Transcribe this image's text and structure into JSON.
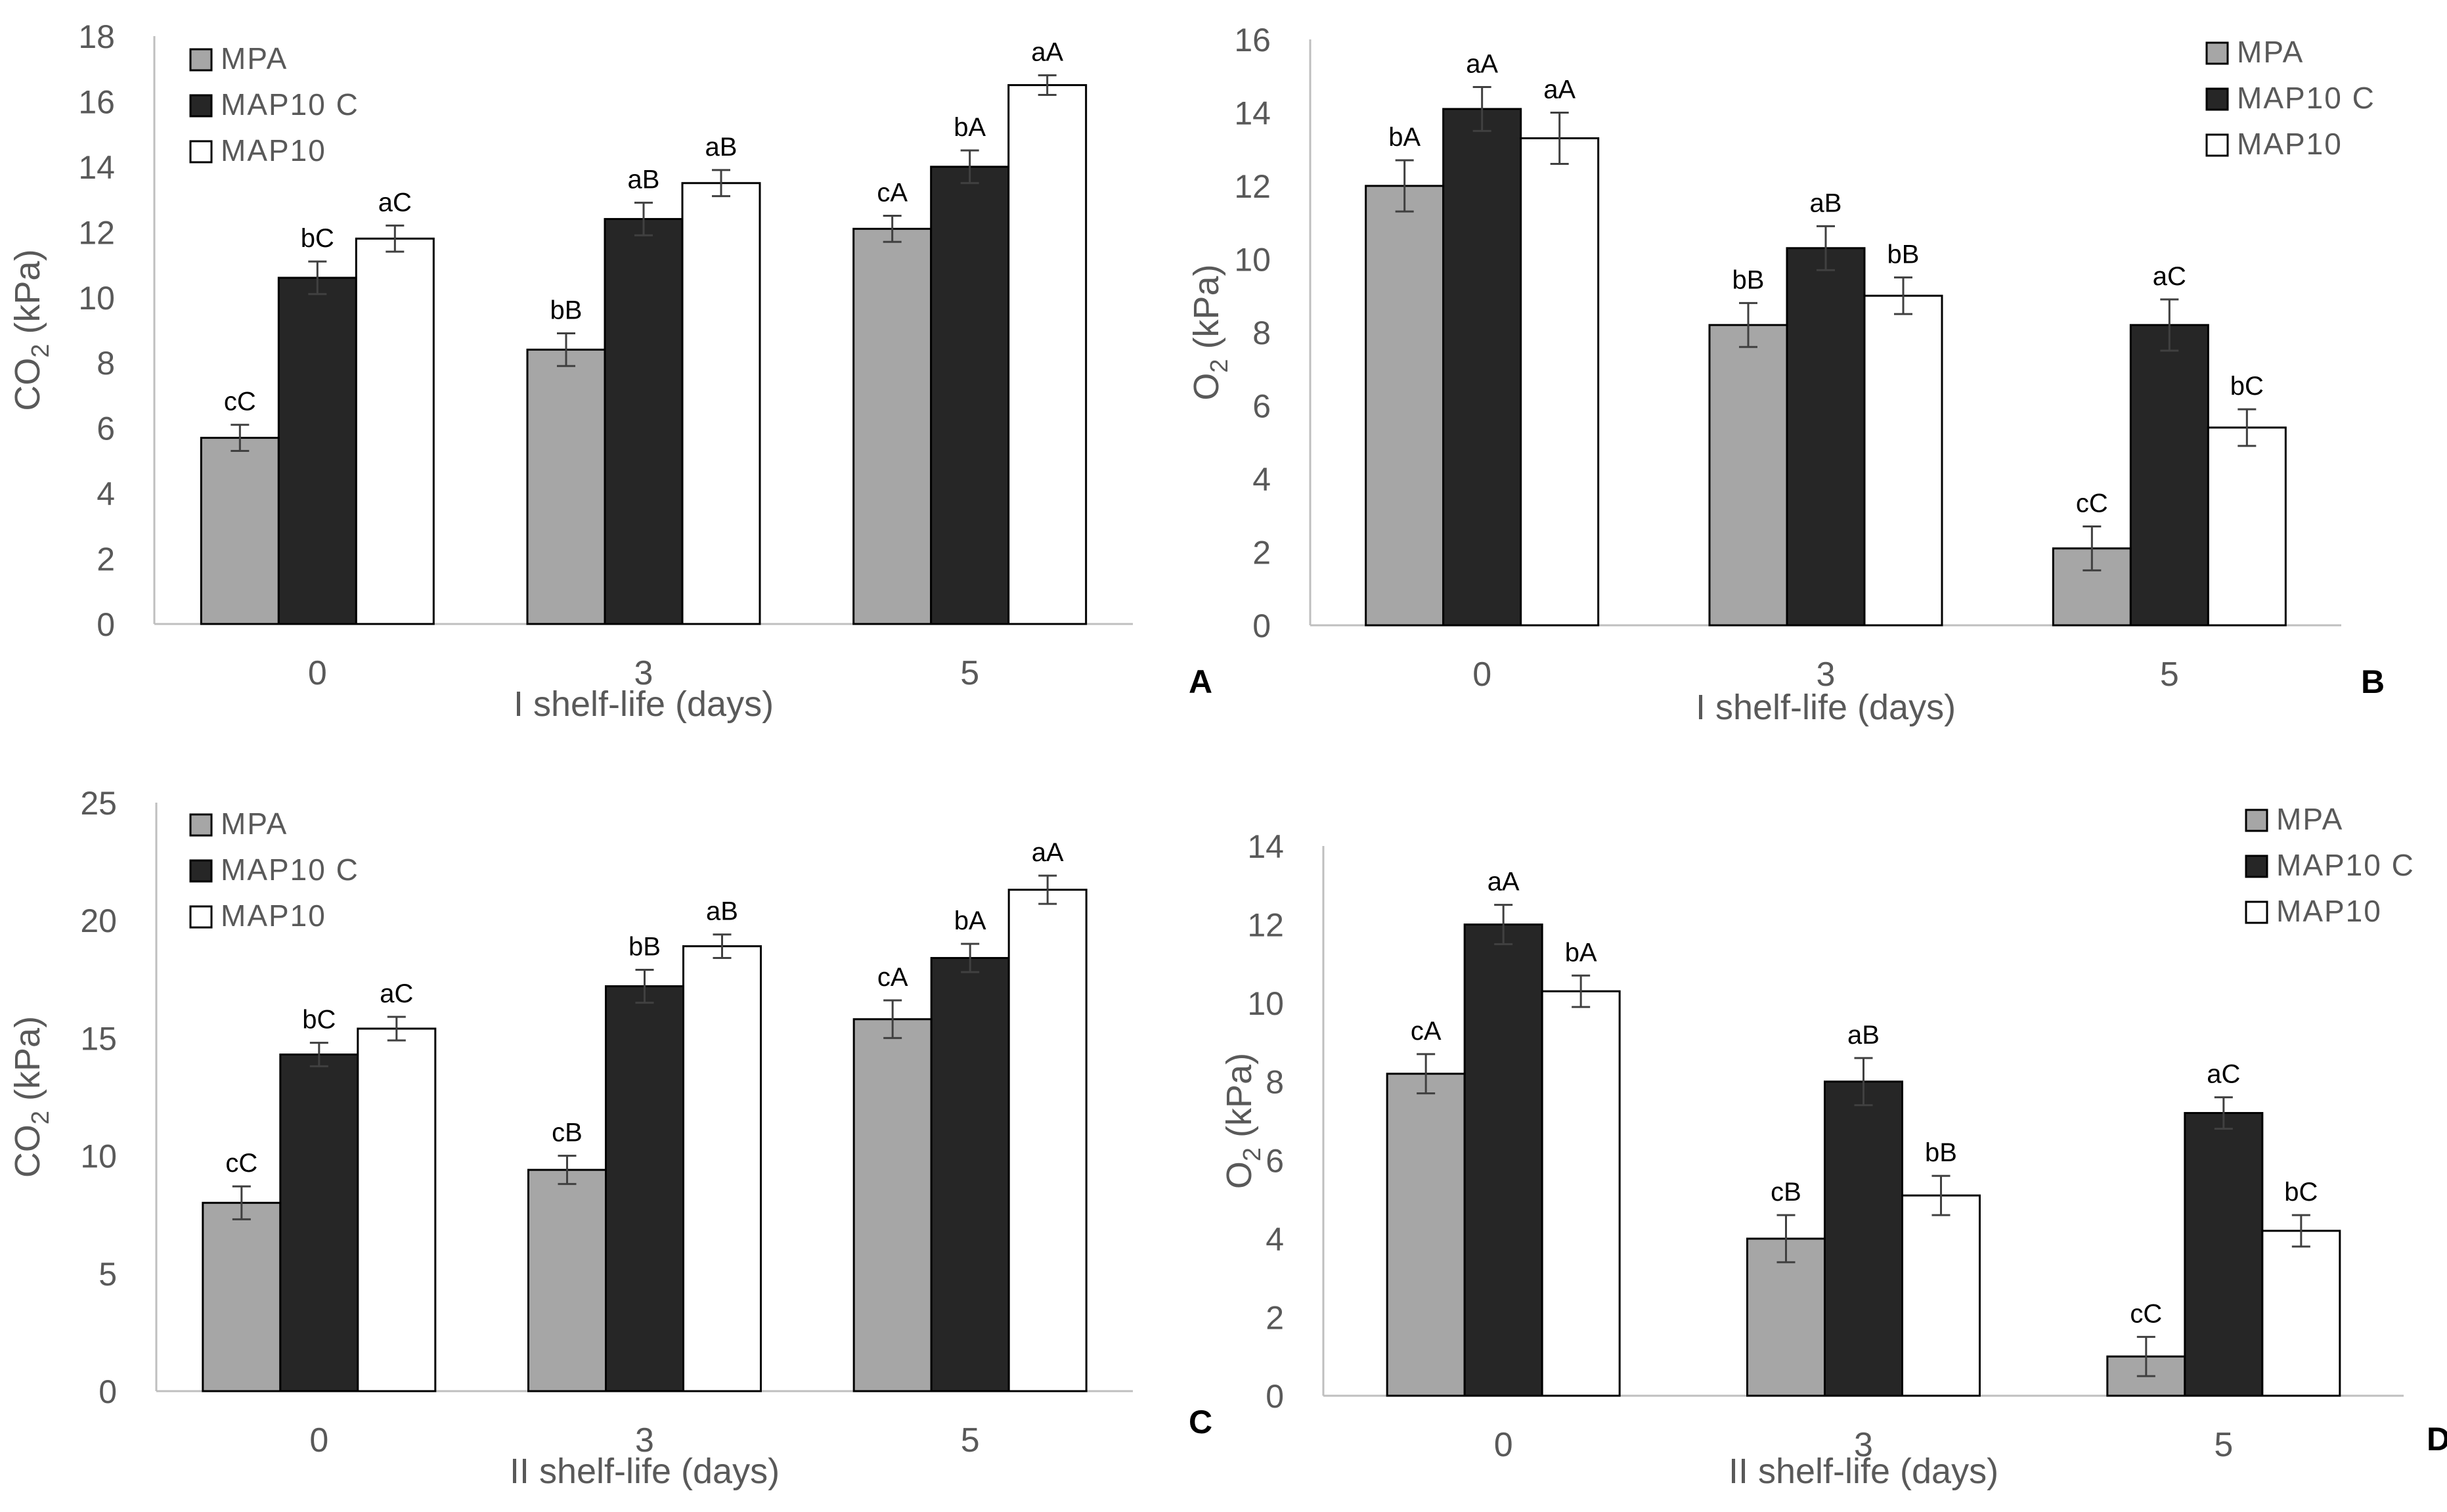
{
  "colors": {
    "MPA": "#a6a6a6",
    "MAP10 C": "#262626",
    "MAP10": "#ffffff",
    "axis": "#bfbfbf",
    "tick_text": "#595959",
    "bar_stroke": "#000000",
    "error_bar": "#404040"
  },
  "chart_data": [
    {
      "panel": "A",
      "type": "bar",
      "categories": [
        "0",
        "3",
        "5"
      ],
      "xlabel": "I shelf-life (days)",
      "ylabel_main": "CO",
      "ylabel_sub": "2",
      "ylabel_unit": " (kPa)",
      "ylim": [
        0,
        18
      ],
      "ytick_step": 2,
      "yticks": [
        "0",
        "2",
        "4",
        "6",
        "8",
        "10",
        "12",
        "14",
        "16",
        "18"
      ],
      "legend_position": "top-left",
      "series": [
        {
          "name": "MPA",
          "values": [
            5.7,
            8.4,
            12.1
          ],
          "errors": [
            0.4,
            0.5,
            0.4
          ],
          "labels": [
            "cC",
            "bB",
            "cA"
          ]
        },
        {
          "name": "MAP10 C",
          "values": [
            10.6,
            12.4,
            14.0
          ],
          "errors": [
            0.5,
            0.5,
            0.5
          ],
          "labels": [
            "bC",
            "aB",
            "bA"
          ]
        },
        {
          "name": "MAP10",
          "values": [
            11.8,
            13.5,
            16.5
          ],
          "errors": [
            0.4,
            0.4,
            0.3
          ],
          "labels": [
            "aC",
            "aB",
            "aA"
          ]
        }
      ]
    },
    {
      "panel": "B",
      "type": "bar",
      "categories": [
        "0",
        "3",
        "5"
      ],
      "xlabel": "I shelf-life (days)",
      "ylabel_main": "O",
      "ylabel_sub": "2",
      "ylabel_unit": " (kPa)",
      "ylim": [
        0,
        16
      ],
      "ytick_step": 2,
      "yticks": [
        "0",
        "2",
        "4",
        "6",
        "8",
        "10",
        "12",
        "14",
        "16"
      ],
      "legend_position": "top-right",
      "series": [
        {
          "name": "MPA",
          "values": [
            12.0,
            8.2,
            2.1
          ],
          "errors": [
            0.7,
            0.6,
            0.6
          ],
          "labels": [
            "bA",
            "bB",
            "cC"
          ]
        },
        {
          "name": "MAP10 C",
          "values": [
            14.1,
            10.3,
            8.2
          ],
          "errors": [
            0.6,
            0.6,
            0.7
          ],
          "labels": [
            "aA",
            "aB",
            "aC"
          ]
        },
        {
          "name": "MAP10",
          "values": [
            13.3,
            9.0,
            5.4
          ],
          "errors": [
            0.7,
            0.5,
            0.5
          ],
          "labels": [
            "aA",
            "bB",
            "bC"
          ]
        }
      ]
    },
    {
      "panel": "C",
      "type": "bar",
      "categories": [
        "0",
        "3",
        "5"
      ],
      "xlabel": "II shelf-life (days)",
      "ylabel_main": "CO",
      "ylabel_sub": "2",
      "ylabel_unit": " (kPa)",
      "ylim": [
        0,
        25
      ],
      "ytick_step": 5,
      "yticks": [
        "0",
        "5",
        "10",
        "15",
        "20",
        "25"
      ],
      "legend_position": "top-left",
      "series": [
        {
          "name": "MPA",
          "values": [
            8.0,
            9.4,
            15.8
          ],
          "errors": [
            0.7,
            0.6,
            0.8
          ],
          "labels": [
            "cC",
            "cB",
            "cA"
          ]
        },
        {
          "name": "MAP10 C",
          "values": [
            14.3,
            17.2,
            18.4
          ],
          "errors": [
            0.5,
            0.7,
            0.6
          ],
          "labels": [
            "bC",
            "bB",
            "bA"
          ]
        },
        {
          "name": "MAP10",
          "values": [
            15.4,
            18.9,
            21.3
          ],
          "errors": [
            0.5,
            0.5,
            0.6
          ],
          "labels": [
            "aC",
            "aB",
            "aA"
          ]
        }
      ]
    },
    {
      "panel": "D",
      "type": "bar",
      "categories": [
        "0",
        "3",
        "5"
      ],
      "xlabel": "II shelf-life (days)",
      "ylabel_main": "O",
      "ylabel_sub": "2",
      "ylabel_unit": " (kPa)",
      "ylim": [
        0,
        14
      ],
      "ytick_step": 2,
      "yticks": [
        "0",
        "2",
        "4",
        "6",
        "8",
        "10",
        "12",
        "14"
      ],
      "legend_position": "top-right",
      "series": [
        {
          "name": "MPA",
          "values": [
            8.2,
            4.0,
            1.0
          ],
          "errors": [
            0.5,
            0.6,
            0.5
          ],
          "labels": [
            "cA",
            "cB",
            "cC"
          ]
        },
        {
          "name": "MAP10 C",
          "values": [
            12.0,
            8.0,
            7.2
          ],
          "errors": [
            0.5,
            0.6,
            0.4
          ],
          "labels": [
            "aA",
            "aB",
            "aC"
          ]
        },
        {
          "name": "MAP10",
          "values": [
            10.3,
            5.1,
            4.2
          ],
          "errors": [
            0.4,
            0.5,
            0.4
          ],
          "labels": [
            "bA",
            "bB",
            "bC"
          ]
        }
      ]
    }
  ]
}
